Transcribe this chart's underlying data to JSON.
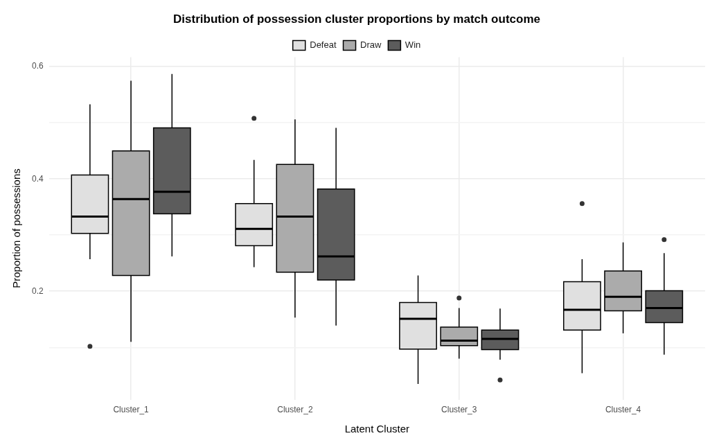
{
  "chart_data": {
    "type": "box",
    "title": "Distribution of possession cluster proportions by match outcome",
    "xlabel": "Latent Cluster",
    "ylabel": "Proportion of possessions",
    "categories": [
      "Cluster_1",
      "Cluster_2",
      "Cluster_3",
      "Cluster_4"
    ],
    "series": [
      {
        "name": "Defeat",
        "color": "#e0e0e0",
        "boxes": [
          {
            "low": 0.257,
            "q1": 0.303,
            "median": 0.333,
            "q3": 0.407,
            "high": 0.533,
            "outliers": [
              0.102
            ]
          },
          {
            "low": 0.243,
            "q1": 0.281,
            "median": 0.311,
            "q3": 0.356,
            "high": 0.434,
            "outliers": [
              0.508
            ]
          },
          {
            "low": 0.035,
            "q1": 0.097,
            "median": 0.151,
            "q3": 0.18,
            "high": 0.228
          },
          {
            "low": 0.054,
            "q1": 0.131,
            "median": 0.167,
            "q3": 0.217,
            "high": 0.257,
            "outliers": [
              0.356
            ]
          }
        ]
      },
      {
        "name": "Draw",
        "color": "#ababab",
        "boxes": [
          {
            "low": 0.11,
            "q1": 0.228,
            "median": 0.364,
            "q3": 0.45,
            "high": 0.575
          },
          {
            "low": 0.153,
            "q1": 0.234,
            "median": 0.333,
            "q3": 0.426,
            "high": 0.506
          },
          {
            "low": 0.08,
            "q1": 0.103,
            "median": 0.112,
            "q3": 0.136,
            "high": 0.17,
            "outliers": [
              0.188
            ]
          },
          {
            "low": 0.125,
            "q1": 0.165,
            "median": 0.19,
            "q3": 0.236,
            "high": 0.287
          }
        ]
      },
      {
        "name": "Win",
        "color": "#5c5c5c",
        "boxes": [
          {
            "low": 0.262,
            "q1": 0.338,
            "median": 0.377,
            "q3": 0.491,
            "high": 0.587
          },
          {
            "low": 0.139,
            "q1": 0.22,
            "median": 0.262,
            "q3": 0.382,
            "high": 0.491
          },
          {
            "low": 0.078,
            "q1": 0.096,
            "median": 0.115,
            "q3": 0.131,
            "high": 0.169,
            "outliers": [
              0.042
            ]
          },
          {
            "low": 0.087,
            "q1": 0.144,
            "median": 0.17,
            "q3": 0.201,
            "high": 0.268,
            "outliers": [
              0.292
            ]
          }
        ]
      }
    ],
    "ylim": [
      0.007,
      0.617
    ],
    "yticks": [
      {
        "value": 0.1,
        "label": null
      },
      0.2,
      {
        "value": 0.3,
        "label": null
      },
      0.4,
      {
        "value": 0.5,
        "label": null
      },
      0.6
    ],
    "grid": true,
    "legend": "top"
  }
}
